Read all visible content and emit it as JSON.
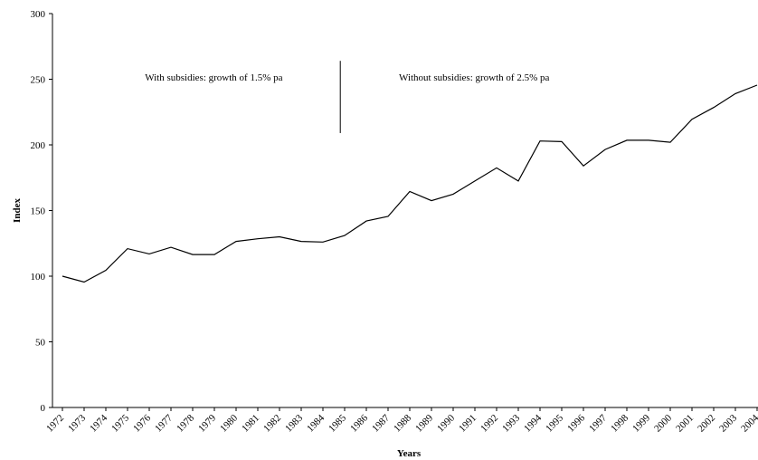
{
  "chart_data": {
    "type": "line",
    "title": "",
    "xlabel": "Years",
    "ylabel": "Index",
    "ylim": [
      0,
      300
    ],
    "yticks": [
      "0",
      "50",
      "100",
      "150",
      "200",
      "250",
      "300"
    ],
    "grid": false,
    "legend": "none",
    "categories": [
      "1972",
      "1973",
      "1974",
      "1975",
      "1976",
      "1977",
      "1978",
      "1979",
      "1980",
      "1981",
      "1982",
      "1983",
      "1984",
      "1985",
      "1986",
      "1987",
      "1988",
      "1989",
      "1990",
      "1991",
      "1992",
      "1993",
      "1994",
      "1995",
      "1996",
      "1997",
      "1998",
      "1999",
      "2000",
      "2001",
      "2002",
      "2003",
      "2004"
    ],
    "series": [
      {
        "color": "#000000",
        "values": [
          100,
          95.5,
          104.5,
          121,
          117,
          122,
          116.5,
          116.5,
          126.5,
          128.5,
          130,
          126.5,
          126,
          131,
          142,
          145.5,
          164.5,
          157.5,
          162.5,
          172.5,
          182.5,
          172.5,
          203,
          202.5,
          184,
          196.5,
          203.5,
          203.5,
          202,
          219.5,
          228.5,
          239,
          245.5
        ]
      }
    ],
    "annotations": [
      {
        "text": "With subsidies: growth of 1.5% pa",
        "x": "1975.8",
        "y": 249
      },
      {
        "text": "Without subsidies: growth of 2.5% pa",
        "x": "1987.5",
        "y": 249
      }
    ],
    "divider": {
      "x": "1984.8",
      "y_from": 209,
      "y_to": 264
    }
  }
}
